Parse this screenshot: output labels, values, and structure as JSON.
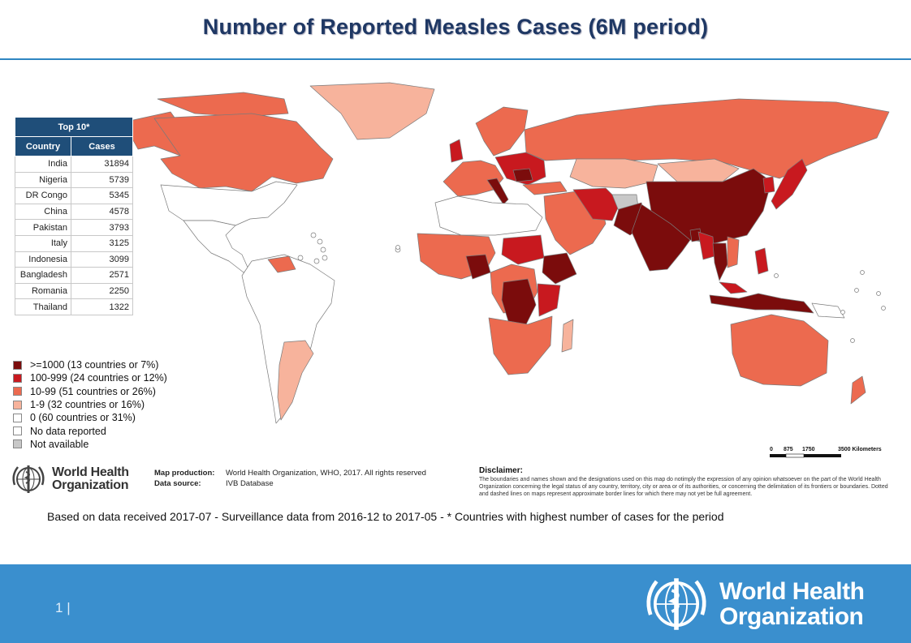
{
  "title": "Number of Reported Measles Cases (6M period)",
  "top10": {
    "caption": "Top 10*",
    "col_country": "Country",
    "col_cases": "Cases",
    "rows": [
      {
        "country": "India",
        "cases": "31894"
      },
      {
        "country": "Nigeria",
        "cases": "5739"
      },
      {
        "country": "DR Congo",
        "cases": "5345"
      },
      {
        "country": "China",
        "cases": "4578"
      },
      {
        "country": "Pakistan",
        "cases": "3793"
      },
      {
        "country": "Italy",
        "cases": "3125"
      },
      {
        "country": "Indonesia",
        "cases": "3099"
      },
      {
        "country": "Bangladesh",
        "cases": "2571"
      },
      {
        "country": "Romania",
        "cases": "2250"
      },
      {
        "country": "Thailand",
        "cases": "1322"
      }
    ]
  },
  "legend": [
    {
      "label": ">=1000 (13 countries or 7%)",
      "color": "#7b0c0c"
    },
    {
      "label": "100-999 (24 countries or 12%)",
      "color": "#c8191f"
    },
    {
      "label": "10-99 (51 countries or 26%)",
      "color": "#ec6a4f"
    },
    {
      "label": "1-9 (32 countries or 16%)",
      "color": "#f7b39c"
    },
    {
      "label": "0 (60 countries or 31%)",
      "color": "#ffffff"
    },
    {
      "label": "No data reported",
      "color": "#ffffff"
    },
    {
      "label": "Not available",
      "color": "#c8c8c8"
    }
  ],
  "scale": {
    "t0": "0",
    "t1": "875",
    "t2": "1750",
    "t3": "3500 Kilometers"
  },
  "who_name_line1": "World Health",
  "who_name_line2": "Organization",
  "map_production_label": "Map production:",
  "map_production_value": "World Health Organization, WHO, 2017. All rights reserved",
  "data_source_label": "Data source:",
  "data_source_value": "IVB Database",
  "disclaimer_heading": "Disclaimer:",
  "disclaimer_text": "The boundaries and names shown and the designations used on this map do notimply the expression of any opinion whatsoever on the part of the World Health Organization concerning the legal status of any country, territory, city or area or of its authorities, or concerning the delimitation of its frontiers or boundaries. Dotted and dashed lines on maps represent approximate border lines for which there may not yet be full agreement.",
  "basis_note": "Based on data received 2017-07 - Surveillance data from 2016-12 to 2017-05 - * Countries with highest number of cases for the period",
  "page_number": "1"
}
